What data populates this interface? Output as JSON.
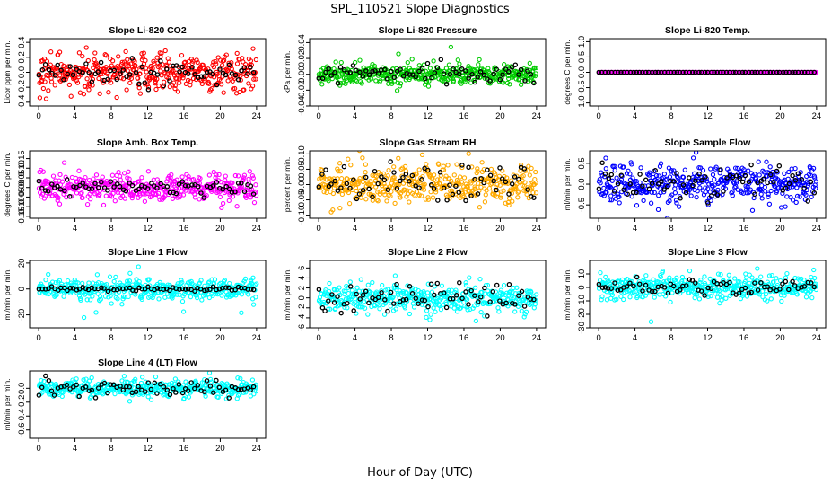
{
  "figure": {
    "title": "SPL_110521  Slope Diagnostics",
    "xlabel": "Hour of Day (UTC)"
  },
  "chart_data": [
    {
      "type": "scatter",
      "title": "Slope Li-820 CO2",
      "ylabel": "Licor ppm per min.",
      "xlim": [
        -1,
        25
      ],
      "ylim": [
        -0.45,
        0.45
      ],
      "yticks": [
        -0.4,
        -0.2,
        0.0,
        0.2,
        0.4
      ],
      "ytick_labels": [
        "-0.4",
        "-0.2",
        "0.0",
        "0.2",
        "0.4"
      ],
      "xticks": [
        0,
        4,
        8,
        12,
        16,
        20,
        24
      ],
      "color": "#ff0000",
      "spread": 0.13,
      "black_spread": 0.09,
      "n": 420
    },
    {
      "type": "scatter",
      "title": "Slope Li-820 Pressure",
      "ylabel": "kPa per min.",
      "xlim": [
        -1,
        25
      ],
      "ylim": [
        -0.04,
        0.045
      ],
      "yticks": [
        -0.04,
        -0.02,
        0.0,
        0.02,
        0.04
      ],
      "ytick_labels": [
        "-0.04",
        "-0.02",
        "0.00",
        "0.02",
        "0.04"
      ],
      "xticks": [
        0,
        4,
        8,
        12,
        16,
        20,
        24
      ],
      "color": "#00cc00",
      "spread": 0.006,
      "black_spread": 0.006,
      "n": 420
    },
    {
      "type": "scatter",
      "title": "Slope Li-820 Temp.",
      "ylabel": "degrees C per min.",
      "xlim": [
        -1,
        25
      ],
      "ylim": [
        -1.1,
        1.1
      ],
      "yticks": [
        -1.0,
        -0.5,
        0.0,
        0.5,
        1.0
      ],
      "ytick_labels": [
        "-1.0",
        "-0.5",
        "0.0",
        "0.5",
        "1.0"
      ],
      "xticks": [
        0,
        4,
        8,
        12,
        16,
        20,
        24
      ],
      "color": "#ff00ff",
      "spread": 0.0,
      "black_spread": 0.0,
      "n": 420
    },
    {
      "type": "scatter",
      "title": "Slope Amb. Box Temp.",
      "ylabel": "degrees C per min.",
      "xlim": [
        -1,
        25
      ],
      "ylim": [
        -0.16,
        0.19
      ],
      "yticks": [
        -0.15,
        -0.1,
        -0.05,
        0.0,
        0.05,
        0.1,
        0.15
      ],
      "ytick_labels": [
        "-0.15",
        "-0.10",
        "-0.05",
        "0.00",
        "0.05",
        "0.10",
        "0.15"
      ],
      "xticks": [
        0,
        4,
        8,
        12,
        16,
        20,
        24
      ],
      "color": "#ff00ff",
      "spread": 0.035,
      "black_spread": 0.02,
      "n": 420
    },
    {
      "type": "scatter",
      "title": "Slope Gas Stream RH",
      "ylabel": "percent per min.",
      "xlim": [
        -1,
        25
      ],
      "ylim": [
        -0.11,
        0.11
      ],
      "yticks": [
        -0.1,
        -0.05,
        0.0,
        0.05,
        0.1
      ],
      "ytick_labels": [
        "-0.10",
        "-0.05",
        "0.00",
        "0.05",
        "0.10"
      ],
      "xticks": [
        0,
        4,
        8,
        12,
        16,
        20,
        24
      ],
      "color": "#ffaa00",
      "spread": 0.03,
      "black_spread": 0.03,
      "n": 420
    },
    {
      "type": "scatter",
      "title": "Slope Sample Flow",
      "ylabel": "ml/min per min.",
      "xlim": [
        -1,
        25
      ],
      "ylim": [
        -0.82,
        0.8
      ],
      "yticks": [
        -0.5,
        0.0,
        0.5
      ],
      "ytick_labels": [
        "-0.5",
        "0.0",
        "0.5"
      ],
      "xticks": [
        0,
        4,
        8,
        12,
        16,
        20,
        24
      ],
      "color": "#0000ff",
      "spread": 0.22,
      "black_spread": 0.2,
      "n": 420
    },
    {
      "type": "scatter",
      "title": "Slope Line 1 Flow",
      "ylabel": "ml/min per min.",
      "xlim": [
        -1,
        25
      ],
      "ylim": [
        -30,
        22
      ],
      "yticks": [
        -20,
        0,
        20
      ],
      "ytick_labels": [
        "-20",
        "0",
        "20"
      ],
      "xticks": [
        0,
        4,
        8,
        12,
        16,
        20,
        24
      ],
      "color": "#00ffff",
      "spread": 4,
      "black_spread": 0.8,
      "n": 420
    },
    {
      "type": "scatter",
      "title": "Slope Line 2 Flow",
      "ylabel": "ml/min per min.",
      "xlim": [
        -1,
        25
      ],
      "ylim": [
        -6,
        7.5
      ],
      "yticks": [
        -6,
        -4,
        -2,
        0,
        2,
        4,
        6
      ],
      "ytick_labels": [
        "-6",
        "-4",
        "-2",
        "0",
        "2",
        "4",
        "6"
      ],
      "xticks": [
        0,
        4,
        8,
        12,
        16,
        20,
        24
      ],
      "color": "#00ffff",
      "spread": 1.3,
      "black_spread": 1.5,
      "n": 420
    },
    {
      "type": "scatter",
      "title": "Slope Line 3 Flow",
      "ylabel": "ml/min per min.",
      "xlim": [
        -1,
        25
      ],
      "ylim": [
        -30,
        20
      ],
      "yticks": [
        -30,
        -20,
        -10,
        0,
        10
      ],
      "ytick_labels": [
        "-30",
        "-20",
        "-10",
        "0",
        "10"
      ],
      "xticks": [
        0,
        4,
        8,
        12,
        16,
        20,
        24
      ],
      "color": "#00ffff",
      "spread": 4,
      "black_spread": 3,
      "n": 420
    },
    {
      "type": "scatter",
      "title": "Slope Line 4 (LT) Flow",
      "ylabel": "ml/min per min.",
      "xlim": [
        -1,
        25
      ],
      "ylim": [
        -0.72,
        0.25
      ],
      "yticks": [
        -0.6,
        -0.4,
        -0.2,
        0.0
      ],
      "ytick_labels": [
        "-0.6",
        "-0.4",
        "-0.2",
        "0.0"
      ],
      "xticks": [
        0,
        4,
        8,
        12,
        16,
        20,
        24
      ],
      "color": "#00ffff",
      "spread": 0.06,
      "black_spread": 0.06,
      "n": 420
    }
  ]
}
